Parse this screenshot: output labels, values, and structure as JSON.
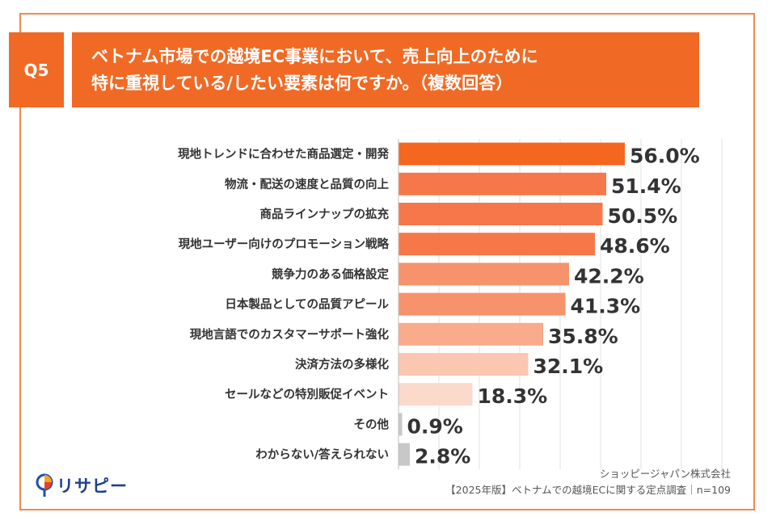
{
  "header": {
    "q_label": "Q5",
    "title_line1": "ベトナム市場での越境EC事業において、売上向上のために",
    "title_line2": "特に重視している/したい要素は何ですか。（複数回答）"
  },
  "source": {
    "company": "ショッピージャパン株式会社",
    "survey": "【2025年版】ベトナムでの越境ECに関する定点調査｜n=109"
  },
  "logo": {
    "text": "リサピー",
    "icon": "pin-icon"
  },
  "colors": {
    "bars": [
      "#f5661f",
      "#f6784a",
      "#f6784a",
      "#f6784a",
      "#f7936c",
      "#f7936c",
      "#f9ab8b",
      "#fbc7b1",
      "#fbd9cb",
      "#c8c8c8",
      "#c8c8c8"
    ]
  },
  "chart_data": {
    "type": "bar",
    "orientation": "horizontal",
    "categories": [
      "現地トレンドに合わせた商品選定・開発",
      "物流・配送の速度と品質の向上",
      "商品ラインナップの拡充",
      "現地ユーザー向けのプロモーション戦略",
      "競争力のある価格設定",
      "日本製品としての品質アピール",
      "現地言語でのカスタマーサポート強化",
      "決済方法の多様化",
      "セールなどの特別販促イベント",
      "その他",
      "わからない/答えられない"
    ],
    "values": [
      56.0,
      51.4,
      50.5,
      48.6,
      42.2,
      41.3,
      35.8,
      32.1,
      18.3,
      0.9,
      2.8
    ],
    "value_labels": [
      "56.0%",
      "51.4%",
      "50.5%",
      "48.6%",
      "42.2%",
      "41.3%",
      "35.8%",
      "32.1%",
      "18.3%",
      "0.9%",
      "2.8%"
    ],
    "xlim": [
      0,
      80
    ],
    "grid": true
  }
}
